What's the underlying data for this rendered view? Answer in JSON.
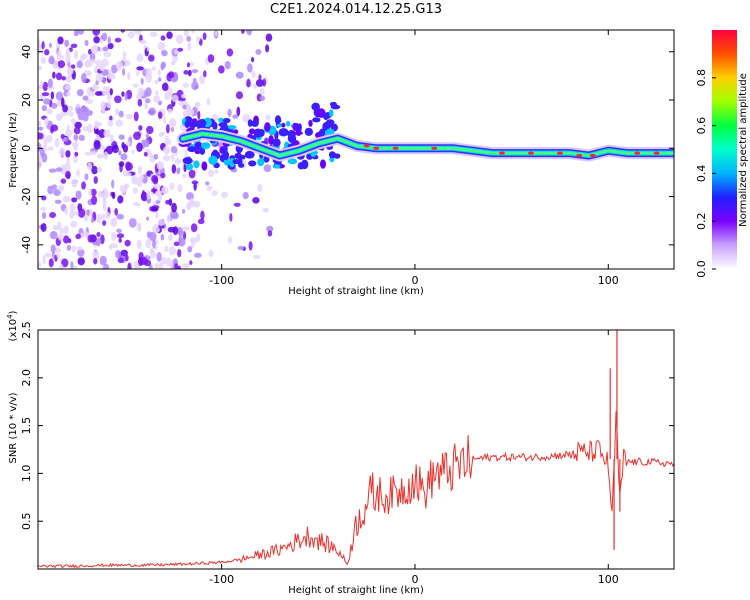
{
  "title": "C2E1.2024.014.12.25.G13",
  "chart_data": [
    {
      "type": "heatmap",
      "xlabel": "Height of straight line (km)",
      "ylabel": "Frequency (Hz)",
      "xlim": [
        -195,
        134
      ],
      "ylim": [
        -50,
        49
      ],
      "x_ticks": [
        -100,
        0,
        100
      ],
      "x_tick_labels": [
        "-100",
        "0",
        "100"
      ],
      "y_ticks": [
        -40,
        -20,
        0,
        20,
        40
      ],
      "y_tick_labels": [
        "-40",
        "-20",
        "0",
        "20",
        "40"
      ],
      "colorbar": {
        "label": "Normalized spectral amplitude",
        "ticks": [
          0.0,
          0.2,
          0.4,
          0.6,
          0.8
        ],
        "tick_labels": [
          "0.0",
          "0.2",
          "0.4",
          "0.6",
          "0.8"
        ],
        "range": [
          0,
          1
        ],
        "colors": [
          "#ffffff",
          "#c8a0ff",
          "#7a00ff",
          "#2020ff",
          "#00b4ff",
          "#00ffcc",
          "#00ff40",
          "#a0ff00",
          "#ffd000",
          "#ff5000",
          "#ff0040"
        ]
      },
      "ridge": {
        "x": [
          -120,
          -110,
          -100,
          -90,
          -80,
          -70,
          -60,
          -50,
          -40,
          -30,
          -20,
          -10,
          0,
          20,
          40,
          60,
          80,
          90,
          100,
          110,
          134
        ],
        "y": [
          4,
          6,
          5,
          3,
          0,
          -3,
          -1,
          2,
          4,
          1,
          0,
          0,
          0,
          0,
          -2,
          -2,
          -2,
          -3,
          -1,
          -2,
          -2
        ]
      }
    },
    {
      "type": "line",
      "xlabel": "Height of straight line (km)",
      "ylabel": "SNR (10 * v/v)",
      "y_scale_label": "(x10",
      "y_scale_exp": "4",
      "y_scale_close": ")",
      "xlim": [
        -195,
        134
      ],
      "ylim": [
        0,
        2.5
      ],
      "x_ticks": [
        -100,
        0,
        100
      ],
      "x_tick_labels": [
        "-100",
        "0",
        "100"
      ],
      "y_ticks": [
        0.5,
        1.0,
        1.5,
        2.0,
        2.5
      ],
      "y_tick_labels": [
        "0.5",
        "1.0",
        "1.5",
        "2.0",
        "2.5"
      ],
      "series": [
        {
          "color": "#e8322d",
          "x": [
            -195,
            -180,
            -160,
            -140,
            -120,
            -100,
            -90,
            -80,
            -70,
            -60,
            -55,
            -50,
            -45,
            -40,
            -35,
            -30,
            -25,
            -20,
            -15,
            -10,
            -5,
            0,
            5,
            10,
            15,
            20,
            25,
            30,
            40,
            50,
            60,
            70,
            80,
            85,
            90,
            95,
            100,
            102,
            104,
            106,
            108,
            110,
            120,
            134
          ],
          "y": [
            0.03,
            0.03,
            0.04,
            0.04,
            0.05,
            0.07,
            0.1,
            0.15,
            0.2,
            0.3,
            0.35,
            0.3,
            0.25,
            0.2,
            0.05,
            0.5,
            0.7,
            0.8,
            0.75,
            0.8,
            0.85,
            0.95,
            0.8,
            1.0,
            1.0,
            1.05,
            1.1,
            1.15,
            1.17,
            1.17,
            1.17,
            1.18,
            1.2,
            1.22,
            1.22,
            1.24,
            1.1,
            0.5,
            1.6,
            0.7,
            1.15,
            1.12,
            1.12,
            1.1
          ]
        }
      ]
    }
  ]
}
